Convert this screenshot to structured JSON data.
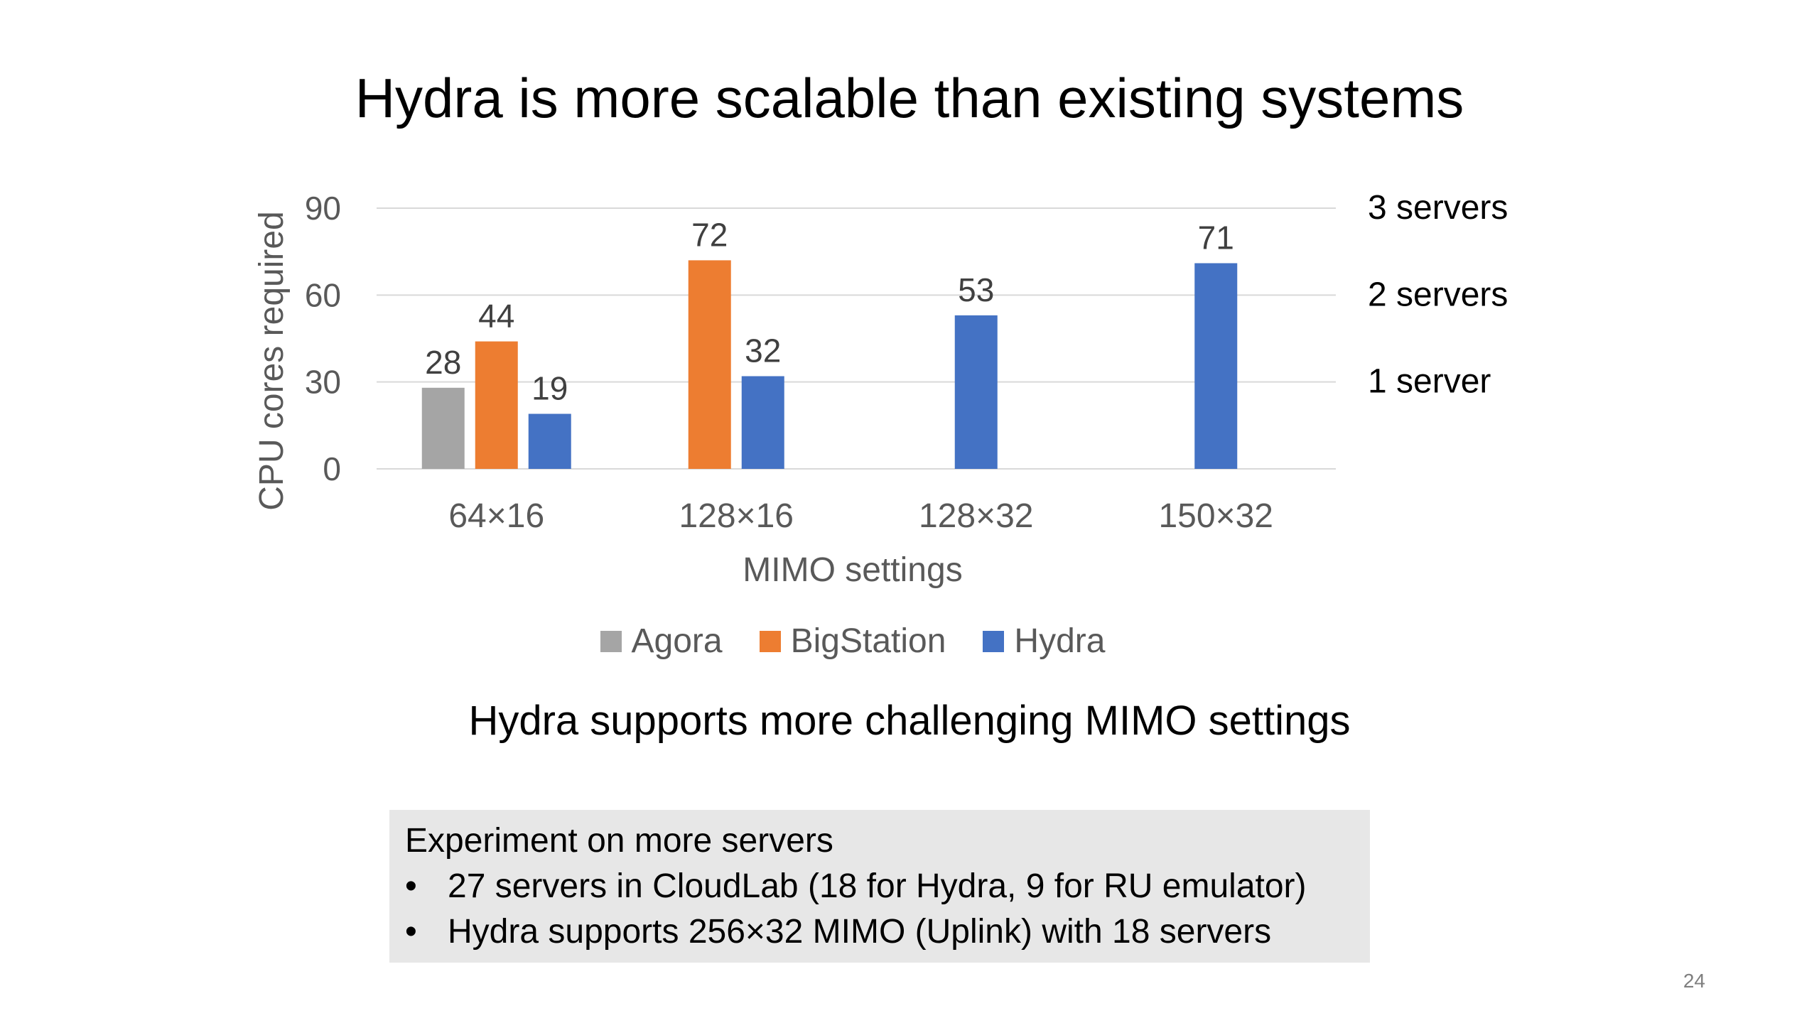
{
  "slide": {
    "title": "Hydra is more scalable than existing systems",
    "subtitle": "Hydra supports more challenging MIMO settings",
    "page_number": "24"
  },
  "note": {
    "heading": "Experiment on more servers",
    "bullet_symbol": "•",
    "bullets": [
      "27 servers in CloudLab (18 for Hydra, 9 for RU emulator)",
      "Hydra supports 256×32 MIMO (Uplink) with 18 servers"
    ]
  },
  "chart_data": {
    "type": "bar",
    "title": "",
    "xlabel": "MIMO settings",
    "ylabel": "CPU cores required",
    "ylim": [
      0,
      90
    ],
    "yticks": [
      0,
      30,
      60,
      90
    ],
    "grid": true,
    "legend_position": "bottom",
    "categories": [
      "64×16",
      "128×16",
      "128×32",
      "150×32"
    ],
    "series": [
      {
        "name": "Agora",
        "color": "#a5a5a5",
        "values": [
          28,
          null,
          null,
          null
        ]
      },
      {
        "name": "BigStation",
        "color": "#ed7d31",
        "values": [
          44,
          72,
          null,
          null
        ]
      },
      {
        "name": "Hydra",
        "color": "#4472c4",
        "values": [
          19,
          32,
          53,
          71
        ]
      }
    ],
    "annotations": [
      {
        "label": "3 servers",
        "y": 90
      },
      {
        "label": "2 servers",
        "y": 60
      },
      {
        "label": "1 server",
        "y": 30
      }
    ]
  }
}
